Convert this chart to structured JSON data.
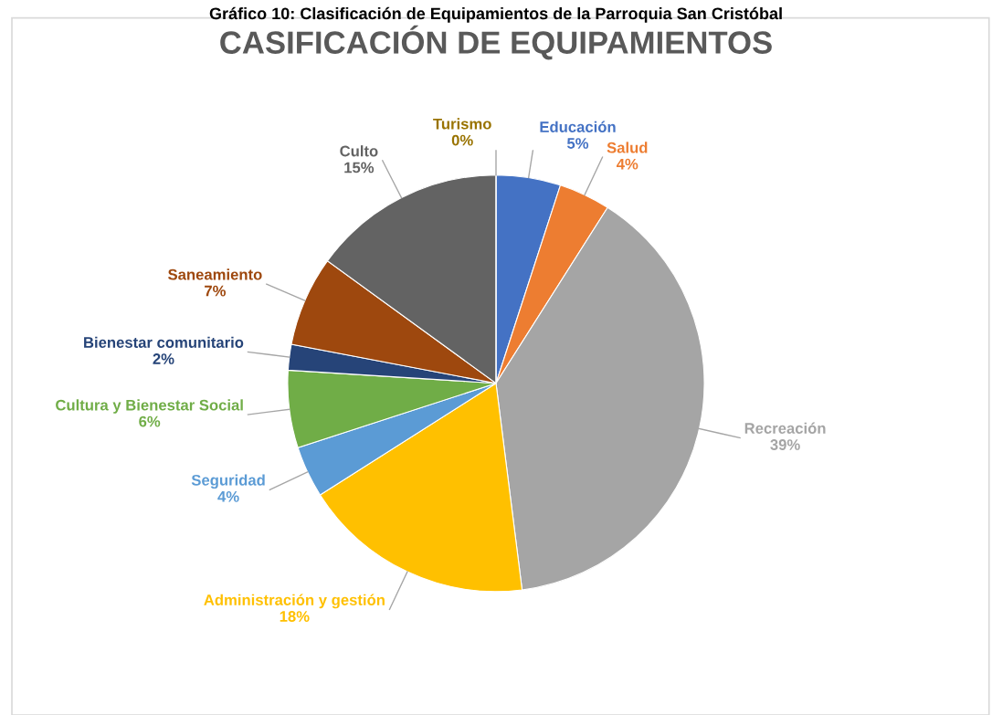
{
  "chart_data": {
    "type": "pie",
    "title": "CASIFICACIÓN DE EQUIPAMIENTOS",
    "annotations": [
      "Gráfico 10: Clasificación de Equipamientos de la Parroquia San Cristóbal"
    ],
    "categories": [
      "Educación",
      "Salud",
      "Recreación",
      "Administración y gestión",
      "Seguridad",
      "Cultura y Bienestar Social",
      "Bienestar comunitario",
      "Saneamiento",
      "Culto",
      "Turismo"
    ],
    "values": [
      5,
      4,
      39,
      18,
      4,
      6,
      2,
      7,
      15,
      0
    ],
    "colors": [
      "#4472c4",
      "#ed7d31",
      "#a5a5a5",
      "#ffc000",
      "#5b9bd5",
      "#70ad47",
      "#264478",
      "#9e480e",
      "#636363",
      "#997300"
    ],
    "value_labels": [
      "5%",
      "4%",
      "39%",
      "18%",
      "4%",
      "6%",
      "2%",
      "7%",
      "15%",
      "0%"
    ],
    "legend": false
  }
}
